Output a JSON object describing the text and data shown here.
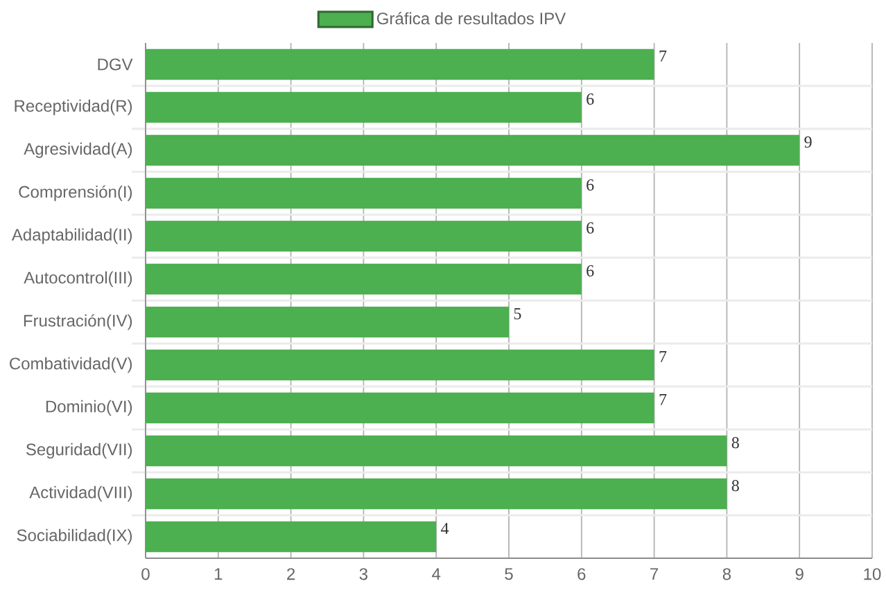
{
  "chart_data": {
    "type": "bar",
    "orientation": "horizontal",
    "categories": [
      "DGV",
      "Receptividad(R)",
      "Agresividad(A)",
      "Comprensión(I)",
      "Adaptabilidad(II)",
      "Autocontrol(III)",
      "Frustración(IV)",
      "Combatividad(V)",
      "Dominio(VI)",
      "Seguridad(VII)",
      "Actividad(VIII)",
      "Sociabilidad(IX)"
    ],
    "series": [
      {
        "name": "Gráfica de resultados IPV",
        "color": "#4caf50",
        "values": [
          7,
          6,
          9,
          6,
          6,
          6,
          5,
          7,
          7,
          8,
          8,
          4
        ]
      }
    ],
    "xlim": [
      0,
      10
    ],
    "xticks": [
      0,
      1,
      2,
      3,
      4,
      5,
      6,
      7,
      8,
      9,
      10
    ],
    "grid": true,
    "legend": "top",
    "data_labels": true
  }
}
